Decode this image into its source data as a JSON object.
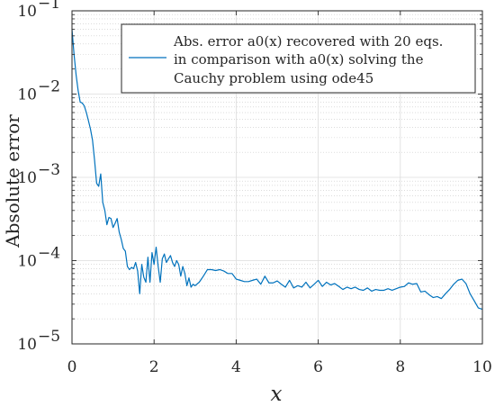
{
  "chart_data": {
    "type": "line",
    "xlabel": "x",
    "ylabel": "Absolute error",
    "xlim": [
      0,
      10
    ],
    "ylim": [
      1e-05,
      0.1
    ],
    "yscale": "log",
    "grid": true,
    "legend_position": "top-right",
    "x_ticks": [
      0,
      2,
      4,
      6,
      8,
      10
    ],
    "x_tick_labels": [
      "0",
      "2",
      "4",
      "6",
      "8",
      "10"
    ],
    "y_ticks": [
      1e-05,
      0.0001,
      0.001,
      0.01,
      0.1
    ],
    "y_tick_labels": [
      {
        "base": "10",
        "exp": "−5"
      },
      {
        "base": "10",
        "exp": "−4"
      },
      {
        "base": "10",
        "exp": "−3"
      },
      {
        "base": "10",
        "exp": "−2"
      },
      {
        "base": "10",
        "exp": "−1"
      }
    ],
    "legend_lines": [
      "Abs. error a0(x) recovered with 20 eqs.",
      "in comparison with a0(x) solving the",
      "Cauchy problem using ode45"
    ],
    "series": [
      {
        "color": "#0072bd",
        "x": [
          0,
          0.05,
          0.1,
          0.15,
          0.2,
          0.25,
          0.3,
          0.35,
          0.4,
          0.45,
          0.5,
          0.55,
          0.6,
          0.65,
          0.7,
          0.75,
          0.8,
          0.85,
          0.9,
          0.95,
          1.0,
          1.05,
          1.1,
          1.15,
          1.2,
          1.25,
          1.3,
          1.35,
          1.4,
          1.45,
          1.5,
          1.55,
          1.6,
          1.65,
          1.7,
          1.75,
          1.8,
          1.85,
          1.9,
          1.95,
          2.0,
          2.05,
          2.1,
          2.15,
          2.2,
          2.25,
          2.3,
          2.35,
          2.4,
          2.45,
          2.5,
          2.55,
          2.6,
          2.65,
          2.7,
          2.75,
          2.8,
          2.85,
          2.9,
          2.95,
          3.0,
          3.1,
          3.2,
          3.3,
          3.4,
          3.5,
          3.6,
          3.7,
          3.8,
          3.9,
          4.0,
          4.1,
          4.2,
          4.3,
          4.4,
          4.5,
          4.6,
          4.7,
          4.8,
          4.9,
          5.0,
          5.1,
          5.2,
          5.3,
          5.4,
          5.5,
          5.6,
          5.7,
          5.8,
          5.9,
          6.0,
          6.1,
          6.2,
          6.3,
          6.4,
          6.5,
          6.6,
          6.7,
          6.8,
          6.9,
          7.0,
          7.1,
          7.2,
          7.3,
          7.4,
          7.5,
          7.6,
          7.7,
          7.8,
          7.9,
          8.0,
          8.1,
          8.2,
          8.3,
          8.4,
          8.5,
          8.6,
          8.7,
          8.8,
          8.9,
          9.0,
          9.1,
          9.2,
          9.3,
          9.4,
          9.5,
          9.6,
          9.7,
          9.8,
          9.9,
          10.0
        ],
        "y": [
          0.06,
          0.03,
          0.017,
          0.011,
          0.008,
          0.0078,
          0.0072,
          0.006,
          0.0048,
          0.0038,
          0.0028,
          0.0016,
          0.00085,
          0.00078,
          0.0011,
          0.0005,
          0.0004,
          0.00027,
          0.00033,
          0.00032,
          0.00025,
          0.00028,
          0.00032,
          0.00022,
          0.00018,
          0.00014,
          0.00013,
          8.5e-05,
          7.8e-05,
          8.3e-05,
          8e-05,
          9.5e-05,
          7.5e-05,
          4e-05,
          9e-05,
          6.3e-05,
          5.5e-05,
          0.00011,
          5.5e-05,
          0.000125,
          9e-05,
          0.000145,
          8.5e-05,
          5.5e-05,
          0.000105,
          0.00012,
          9.5e-05,
          0.000105,
          0.000115,
          9.5e-05,
          8.5e-05,
          0.0001,
          9e-05,
          6.5e-05,
          8.5e-05,
          7e-05,
          5e-05,
          6.2e-05,
          4.8e-05,
          5.2e-05,
          5e-05,
          5.5e-05,
          6.5e-05,
          7.8e-05,
          7.8e-05,
          7.6e-05,
          7.8e-05,
          7.5e-05,
          7e-05,
          7e-05,
          6e-05,
          5.8e-05,
          5.6e-05,
          5.6e-05,
          5.8e-05,
          6e-05,
          5.2e-05,
          6.5e-05,
          5.4e-05,
          5.4e-05,
          5.7e-05,
          5.2e-05,
          4.8e-05,
          5.8e-05,
          4.7e-05,
          5e-05,
          4.8e-05,
          5.5e-05,
          4.7e-05,
          5.2e-05,
          5.8e-05,
          4.9e-05,
          5.5e-05,
          5.1e-05,
          5.3e-05,
          4.9e-05,
          4.5e-05,
          4.8e-05,
          4.6e-05,
          4.8e-05,
          4.5e-05,
          4.4e-05,
          4.7e-05,
          4.3e-05,
          4.5e-05,
          4.4e-05,
          4.4e-05,
          4.6e-05,
          4.4e-05,
          4.6e-05,
          4.8e-05,
          4.9e-05,
          5.4e-05,
          5.2e-05,
          5.3e-05,
          4.2e-05,
          4.3e-05,
          3.9e-05,
          3.6e-05,
          3.7e-05,
          3.5e-05,
          4e-05,
          4.5e-05,
          5.2e-05,
          5.8e-05,
          6e-05,
          5.3e-05,
          4e-05,
          3.3e-05,
          2.7e-05,
          2.6e-05
        ]
      }
    ]
  }
}
